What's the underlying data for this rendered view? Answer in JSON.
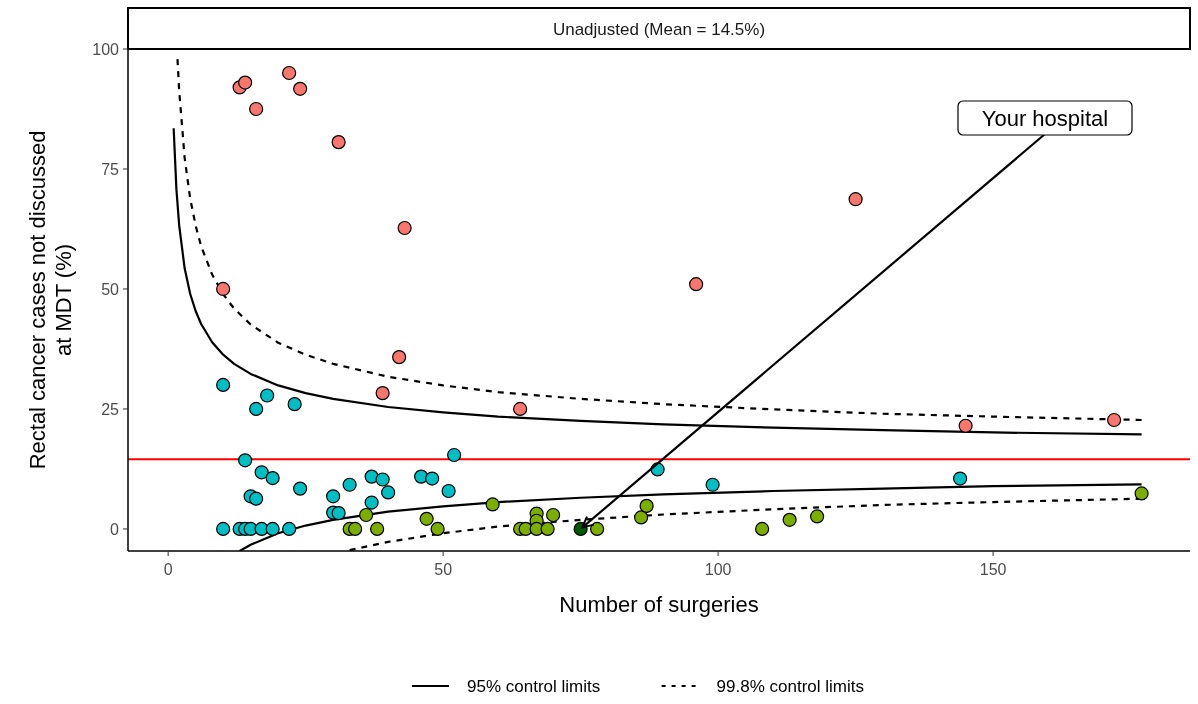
{
  "chart_data": {
    "type": "scatter",
    "title": "Unadjusted (Mean = 14.5%)",
    "xlabel": "Number of surgeries",
    "ylabel": "Rectal cancer cases not discussed\nat MDT (%)",
    "xlim": [
      -7.3,
      185.8
    ],
    "ylim": [
      -4.6,
      100
    ],
    "xticks": [
      0,
      50,
      100,
      150
    ],
    "yticks": [
      0,
      25,
      50,
      75,
      100
    ],
    "grid": false,
    "legend": "bottom",
    "marker": "circle",
    "ref_lines": [
      {
        "axis": "y",
        "value": 14.5,
        "color": "#ff0000"
      }
    ],
    "annotations": [
      {
        "text": "Your hospital",
        "x": 75,
        "y": 0
      }
    ],
    "series": [
      {
        "color": "#f8766d",
        "x": [
          10,
          13,
          14,
          16,
          22,
          24,
          31,
          39,
          42,
          43,
          64,
          96,
          125,
          145,
          172
        ],
        "values": [
          50,
          92,
          93,
          87.5,
          95,
          91.7,
          80.6,
          28.3,
          35.8,
          62.7,
          25,
          51,
          68.7,
          21.5,
          22.7
        ]
      },
      {
        "color": "#00bfc4",
        "x": [
          10,
          18,
          16,
          23,
          14,
          17,
          19,
          15,
          16,
          24,
          30,
          33,
          37,
          39,
          40,
          37,
          30,
          31,
          46,
          48,
          51,
          52,
          89,
          99,
          144,
          10,
          13,
          14,
          15,
          17,
          19,
          22
        ],
        "values": [
          30,
          27.8,
          25,
          26,
          14.3,
          11.8,
          10.6,
          6.8,
          6.3,
          8.4,
          6.8,
          9.2,
          10.9,
          10.3,
          7.6,
          5.5,
          3.4,
          3.3,
          10.9,
          10.5,
          7.9,
          15.4,
          12.4,
          9.2,
          10.5,
          0,
          0,
          0,
          0,
          0,
          0,
          0
        ]
      },
      {
        "color": "#7cae00",
        "x": [
          33,
          34,
          36,
          38,
          47,
          49,
          59,
          64,
          65,
          67,
          67,
          67,
          69,
          70,
          78,
          86,
          87,
          108,
          113,
          118,
          177
        ],
        "values": [
          0,
          0,
          2.9,
          0,
          2.1,
          0,
          5.1,
          0,
          0,
          3.2,
          1.7,
          0,
          0,
          2.9,
          0,
          2.4,
          4.8,
          0,
          1.9,
          2.6,
          7.4
        ]
      },
      {
        "color": "#005a00",
        "x": [
          75
        ],
        "values": [
          0
        ]
      },
      {
        "type": "line",
        "name": "95% control limits",
        "color": "#000000",
        "line_style": "solid",
        "marker": "none",
        "x": [
          1,
          1.5,
          2,
          3,
          4,
          5,
          6,
          8,
          10,
          12,
          15,
          20,
          25,
          30,
          40,
          50,
          60,
          75,
          90,
          110,
          130,
          150,
          177
        ],
        "values": [
          83.5,
          70.8,
          63.3,
          54.3,
          49,
          45.4,
          42.7,
          38.9,
          36.3,
          34.4,
          32.3,
          29.9,
          28.3,
          27.1,
          25.4,
          24.3,
          23.4,
          22.5,
          21.8,
          21.1,
          20.6,
          20.1,
          19.7
        ]
      },
      {
        "type": "line",
        "color": "#000000",
        "line_style": "solid",
        "marker": "none",
        "x": [
          13,
          15,
          20,
          25,
          30,
          40,
          50,
          60,
          75,
          90,
          110,
          130,
          150,
          177
        ],
        "values": [
          -4.6,
          -3.3,
          -0.9,
          0.7,
          1.9,
          3.6,
          4.7,
          5.6,
          6.5,
          7.2,
          7.9,
          8.4,
          8.9,
          9.3
        ]
      },
      {
        "type": "line",
        "name": "99.8% control limits",
        "color": "#000000",
        "line_style": "dashed",
        "marker": "none",
        "x": [
          1.7,
          2,
          3,
          4,
          5,
          6,
          8,
          10,
          12,
          15,
          20,
          25,
          30,
          40,
          50,
          60,
          75,
          90,
          110,
          130,
          150,
          177
        ],
        "values": [
          97.9,
          91.4,
          77.3,
          68.9,
          63.2,
          58.9,
          53,
          48.9,
          45.9,
          42.6,
          38.8,
          36.3,
          34.4,
          31.7,
          29.9,
          28.5,
          27.1,
          26,
          24.9,
          24,
          23.4,
          22.7
        ]
      },
      {
        "type": "line",
        "color": "#000000",
        "line_style": "dashed",
        "marker": "none",
        "x": [
          33,
          40,
          50,
          60,
          75,
          90,
          110,
          130,
          150,
          177
        ],
        "values": [
          -4.4,
          -2.7,
          -0.9,
          0.5,
          1.9,
          3,
          4.1,
          5,
          5.6,
          6.3
        ]
      }
    ]
  }
}
